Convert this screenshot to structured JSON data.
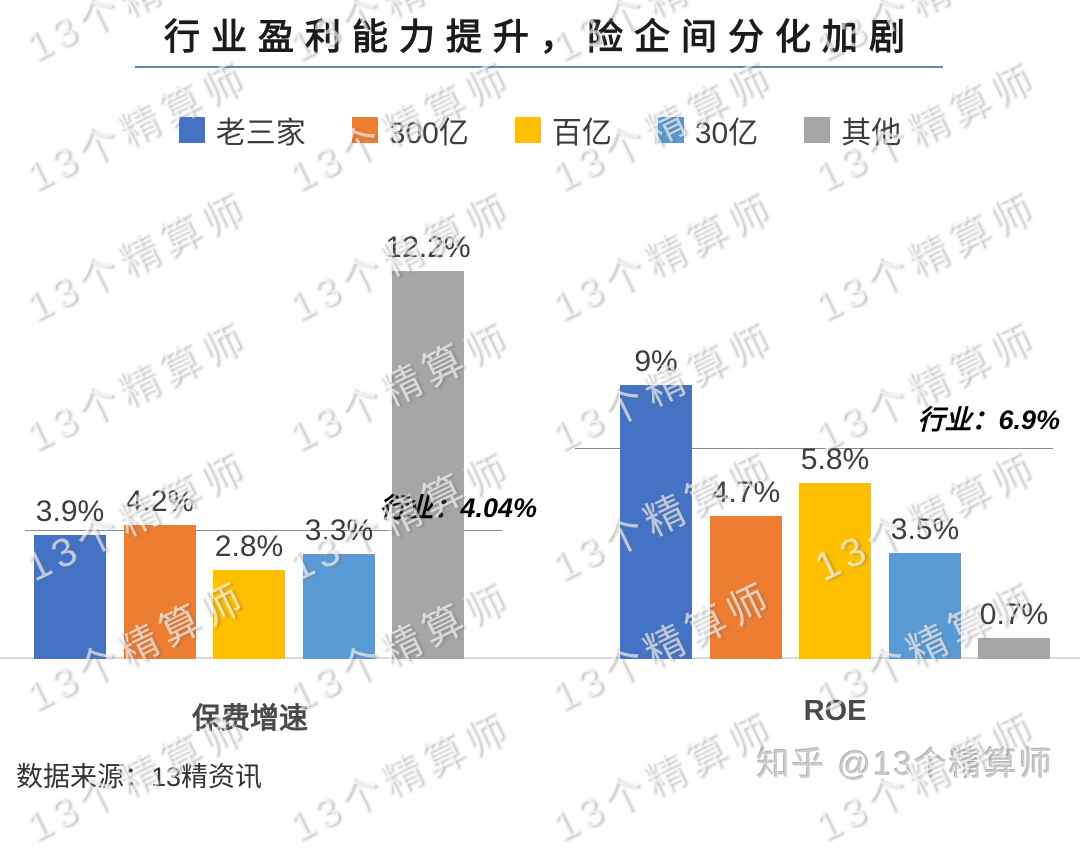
{
  "title": "行业盈利能力提升，险企间分化加剧",
  "legend": [
    {
      "label": "老三家",
      "color": "#4472C4"
    },
    {
      "label": "300亿",
      "color": "#ED7D31"
    },
    {
      "label": "百亿",
      "color": "#FFC000"
    },
    {
      "label": "30亿",
      "color": "#5B9BD5"
    },
    {
      "label": "其他",
      "color": "#A6A6A6"
    }
  ],
  "chart_data": [
    {
      "type": "bar",
      "title": "保费增速",
      "categories": [
        "老三家",
        "300亿",
        "百亿",
        "30亿",
        "其他"
      ],
      "values": [
        3.9,
        4.2,
        2.8,
        3.3,
        12.2
      ],
      "value_labels": [
        "3.9%",
        "4.2%",
        "2.8%",
        "3.3%",
        "12.2%"
      ],
      "unit": "%",
      "colors": [
        "#4472C4",
        "#ED7D31",
        "#FFC000",
        "#5B9BD5",
        "#A6A6A6"
      ],
      "reference_line": {
        "label": "行业：4.04%",
        "value": 4.04
      },
      "ylim": [
        0,
        14.4
      ],
      "grid": false,
      "legend_position": "top"
    },
    {
      "type": "bar",
      "title": "ROE",
      "categories": [
        "老三家",
        "300亿",
        "百亿",
        "30亿",
        "其他"
      ],
      "values": [
        9,
        4.7,
        5.8,
        3.5,
        0.7
      ],
      "value_labels": [
        "9%",
        "4.7%",
        "5.8%",
        "3.5%",
        "0.7%"
      ],
      "unit": "%",
      "colors": [
        "#4472C4",
        "#ED7D31",
        "#FFC000",
        "#5B9BD5",
        "#A6A6A6"
      ],
      "reference_line": {
        "label": "行业：6.9%",
        "value": 6.9
      },
      "ylim": [
        0,
        15.1
      ],
      "grid": false,
      "legend_position": "top"
    }
  ],
  "footer": {
    "source": "数据来源：13精资讯",
    "credit": "知乎 @13个精算师"
  },
  "watermark": {
    "text": "13个精算师"
  }
}
